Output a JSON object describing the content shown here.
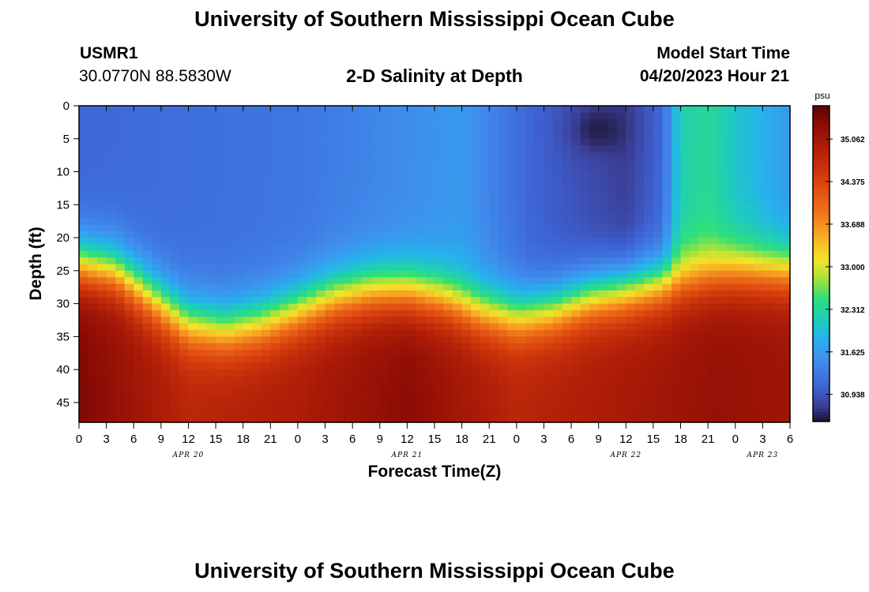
{
  "header": {
    "title": "University of Southern Mississippi Ocean Cube",
    "station_id": "USMR1",
    "station_coords": "30.0770N  88.5830W",
    "subtitle": "2-D Salinity at Depth",
    "start_label": "Model Start Time",
    "start_value": "04/20/2023 Hour 21"
  },
  "footer": {
    "title": "University of Southern Mississippi Ocean Cube"
  },
  "chart_data": {
    "type": "heatmap",
    "title": "2-D Salinity at Depth",
    "xlabel": "Forecast Time(Z)",
    "ylabel": "Depth (ft)",
    "x_start_hour": 0,
    "x_end_hour": 78,
    "x_ticks": [
      0,
      3,
      6,
      9,
      12,
      15,
      18,
      21,
      24,
      27,
      30,
      33,
      36,
      39,
      42,
      45,
      48,
      51,
      54,
      57,
      60,
      63,
      66,
      69,
      72,
      75,
      78
    ],
    "x_tick_labels": [
      "0",
      "3",
      "6",
      "9",
      "12",
      "15",
      "18",
      "21",
      "0",
      "3",
      "6",
      "9",
      "12",
      "15",
      "18",
      "21",
      "0",
      "3",
      "6",
      "9",
      "12",
      "15",
      "18",
      "21",
      "0",
      "3",
      "6"
    ],
    "date_labels": [
      {
        "hour": 12,
        "label": "APR 20"
      },
      {
        "hour": 36,
        "label": "APR 21"
      },
      {
        "hour": 60,
        "label": "APR 22"
      },
      {
        "hour": 75,
        "label": "APR 23"
      }
    ],
    "ylim": [
      0,
      48
    ],
    "y_ticks": [
      0,
      5,
      10,
      15,
      20,
      25,
      30,
      35,
      40,
      45
    ],
    "colorbar": {
      "unit": "psu",
      "min": 30.5,
      "max": 35.6,
      "ticks": [
        30.938,
        31.625,
        32.312,
        33.0,
        33.688,
        34.375,
        35.062
      ],
      "tick_labels": [
        "30.938",
        "31.625",
        "32.312",
        "33.000",
        "33.688",
        "34.375",
        "35.062"
      ]
    },
    "colormap": [
      [
        30.5,
        "#1a1430"
      ],
      [
        30.75,
        "#3b3e96"
      ],
      [
        31.05,
        "#3e63d4"
      ],
      [
        31.5,
        "#3f8fee"
      ],
      [
        31.85,
        "#25b3ec"
      ],
      [
        32.15,
        "#1fcdb8"
      ],
      [
        32.5,
        "#2fe07a"
      ],
      [
        32.8,
        "#a6e23a"
      ],
      [
        33.1,
        "#f0e629"
      ],
      [
        33.45,
        "#f8b325"
      ],
      [
        33.9,
        "#ef7019"
      ],
      [
        34.4,
        "#d9400e"
      ],
      [
        34.9,
        "#b11f08"
      ],
      [
        35.3,
        "#8c0c05"
      ],
      [
        35.6,
        "#5a0503"
      ]
    ],
    "halocline_depth_ft": [
      [
        0,
        24
      ],
      [
        4,
        25
      ],
      [
        8,
        29
      ],
      [
        12,
        33
      ],
      [
        16,
        34
      ],
      [
        20,
        33
      ],
      [
        24,
        31
      ],
      [
        28,
        29
      ],
      [
        32,
        28
      ],
      [
        36,
        28
      ],
      [
        40,
        29
      ],
      [
        44,
        31
      ],
      [
        48,
        32
      ],
      [
        52,
        31
      ],
      [
        56,
        29
      ],
      [
        60,
        28
      ],
      [
        64,
        27
      ],
      [
        68,
        26
      ],
      [
        72,
        25
      ],
      [
        76,
        25
      ],
      [
        78,
        25
      ]
    ],
    "surface_salinity_psu": [
      [
        0,
        31.1
      ],
      [
        24,
        31.25
      ],
      [
        42,
        31.6
      ],
      [
        50,
        31.05
      ],
      [
        60,
        30.75
      ],
      [
        64,
        31.1
      ],
      [
        66,
        32.2
      ],
      [
        69,
        32.35
      ],
      [
        72,
        32.05
      ],
      [
        78,
        31.6
      ]
    ],
    "bottom_salinity_psu": [
      [
        0,
        35.4
      ],
      [
        4,
        35.2
      ],
      [
        12,
        34.8
      ],
      [
        24,
        34.95
      ],
      [
        36,
        35.3
      ],
      [
        48,
        34.8
      ],
      [
        60,
        35.0
      ],
      [
        70,
        35.2
      ],
      [
        78,
        35.1
      ]
    ],
    "low_salinity_patch": {
      "center_hour": 57,
      "center_depth_ft": 3.5,
      "min_psu": 30.55
    }
  }
}
